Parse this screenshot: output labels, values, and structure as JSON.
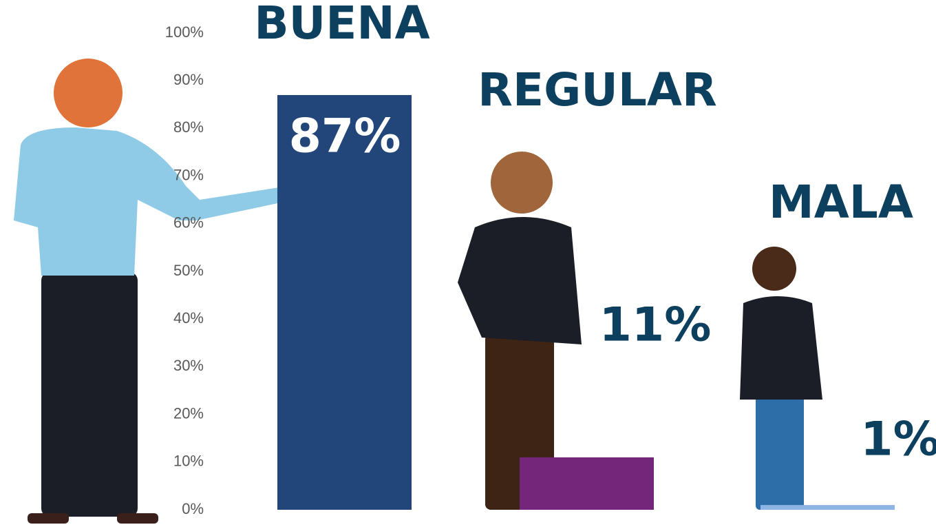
{
  "chart_data": {
    "type": "bar",
    "categories": [
      "BUENA",
      "REGULAR",
      "MALA"
    ],
    "values": [
      87,
      11,
      1
    ],
    "value_labels": [
      "87%",
      "11%",
      "1%"
    ],
    "colors": [
      "#23467a",
      "#74267a",
      "#8db4e2"
    ],
    "ylim": [
      0,
      100
    ],
    "yticks": [
      {
        "value": 0,
        "label": "0%"
      },
      {
        "value": 10,
        "label": "10%"
      },
      {
        "value": 20,
        "label": "20%"
      },
      {
        "value": 30,
        "label": "30%"
      },
      {
        "value": 40,
        "label": "40%"
      },
      {
        "value": 50,
        "label": "50%"
      },
      {
        "value": 60,
        "label": "60%"
      },
      {
        "value": 70,
        "label": "70%"
      },
      {
        "value": 80,
        "label": "80%"
      },
      {
        "value": 90,
        "label": "90%"
      },
      {
        "value": 100,
        "label": "100%"
      }
    ],
    "grid": false
  }
}
